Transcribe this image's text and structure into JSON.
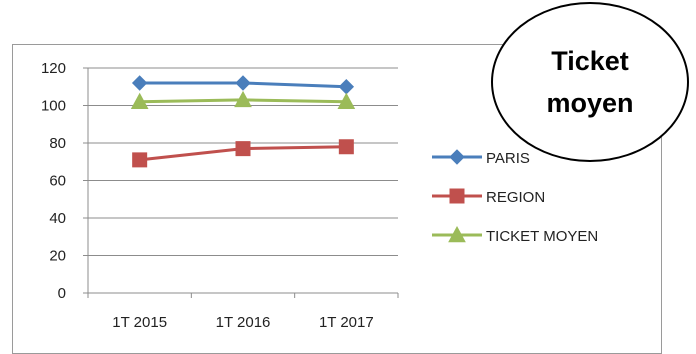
{
  "chart_data": {
    "type": "line",
    "categories": [
      "1T 2015",
      "1T 2016",
      "1T 2017"
    ],
    "series": [
      {
        "name": "PARIS",
        "values": [
          112,
          112,
          110
        ],
        "color": "#4a7ebb",
        "marker": "diamond"
      },
      {
        "name": "REGION",
        "values": [
          71,
          77,
          78
        ],
        "color": "#c0504d",
        "marker": "square"
      },
      {
        "name": "TICKET MOYEN",
        "values": [
          102,
          103,
          102
        ],
        "color": "#9bbb59",
        "marker": "triangle"
      }
    ],
    "yticks": [
      0,
      20,
      40,
      60,
      80,
      100,
      120
    ],
    "ylim": [
      0,
      120
    ],
    "grid": true,
    "legend_position": "right",
    "title": "",
    "xlabel": "",
    "ylabel": ""
  },
  "badge": {
    "text": "Ticket moyen"
  }
}
